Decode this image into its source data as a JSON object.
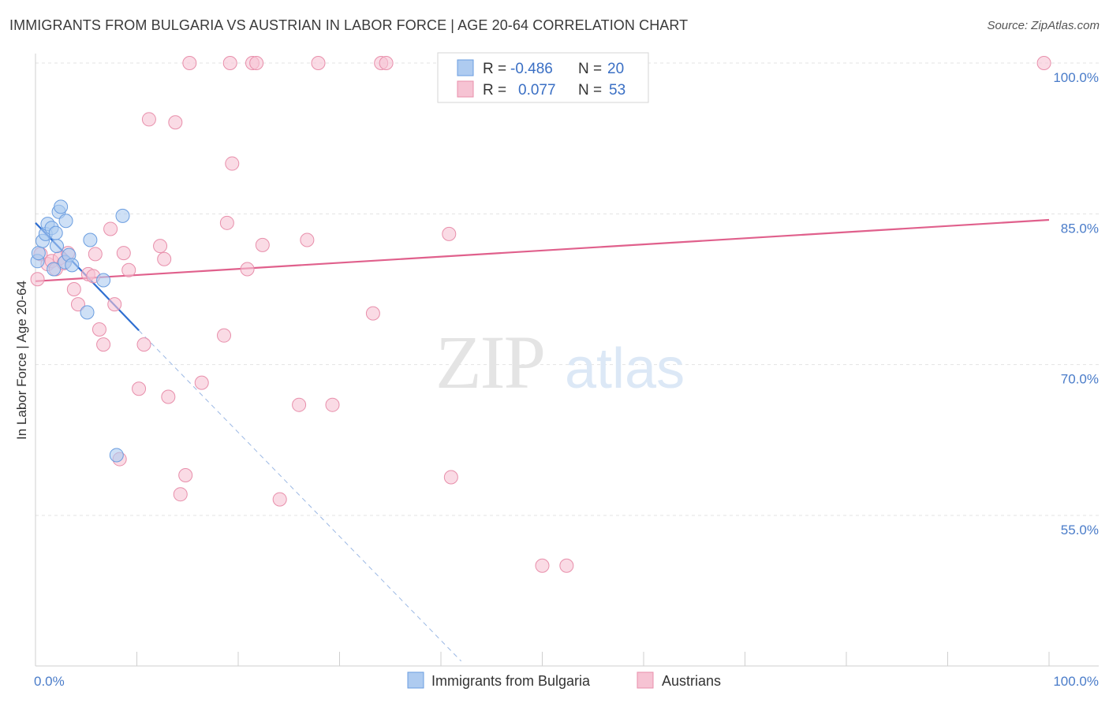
{
  "title": "IMMIGRANTS FROM BULGARIA VS AUSTRIAN IN LABOR FORCE | AGE 20-64 CORRELATION CHART",
  "source": "Source: ZipAtlas.com",
  "watermark": {
    "zip": "ZIP",
    "atlas": "atlas"
  },
  "colors": {
    "blue_fill": "#aecbf0",
    "blue_stroke": "#6a9de0",
    "blue_line": "#2f6fd1",
    "pink_fill": "#f6c3d3",
    "pink_stroke": "#e88fab",
    "pink_line": "#e0608c",
    "tick_text": "#4a7cc9",
    "grid": "#e3e3e3"
  },
  "legend": {
    "rows": [
      {
        "r_label": "R =",
        "r_value": "-0.486",
        "n_label": "N =",
        "n_value": "20"
      },
      {
        "r_label": "R =",
        "r_value": "0.077",
        "n_label": "N =",
        "n_value": "53"
      }
    ]
  },
  "chart_data": {
    "type": "scatter",
    "title": "IMMIGRANTS FROM BULGARIA VS AUSTRIAN IN LABOR FORCE | AGE 20-64 CORRELATION CHART",
    "xlabel": "",
    "ylabel": "In Labor Force | Age 20-64",
    "xlim": [
      0,
      100
    ],
    "ylim": [
      45,
      102
    ],
    "x_tick_labels": [
      "0.0%",
      "100.0%"
    ],
    "y_ticks": [
      55,
      70,
      85,
      100
    ],
    "y_tick_labels": [
      "55.0%",
      "70.0%",
      "85.0%",
      "100.0%"
    ],
    "grid": true,
    "legend_position": "top-center",
    "series": [
      {
        "name": "Immigrants from Bulgaria",
        "color": "#aecbf0",
        "points": [
          [
            0.2,
            80.3
          ],
          [
            0.3,
            81.1
          ],
          [
            0.7,
            82.3
          ],
          [
            1.0,
            83.0
          ],
          [
            1.2,
            84.0
          ],
          [
            1.6,
            83.6
          ],
          [
            1.8,
            79.5
          ],
          [
            2.1,
            81.8
          ],
          [
            2.3,
            85.2
          ],
          [
            2.5,
            85.7
          ],
          [
            2.9,
            80.2
          ],
          [
            3.0,
            84.3
          ],
          [
            3.3,
            80.9
          ],
          [
            3.6,
            79.9
          ],
          [
            5.1,
            75.2
          ],
          [
            5.4,
            82.4
          ],
          [
            6.7,
            78.4
          ],
          [
            8.0,
            61.0
          ],
          [
            8.6,
            84.8
          ],
          [
            2.0,
            83.1
          ]
        ],
        "trend": {
          "x0": 0,
          "y0": 84.1,
          "x1": 10.2,
          "y1": 73.4,
          "dashed_to_x": 42,
          "dashed_to_y": 40.5
        }
      },
      {
        "name": "Austrians",
        "color": "#f6c3d3",
        "points": [
          [
            0.2,
            78.5
          ],
          [
            0.5,
            81.0
          ],
          [
            1.2,
            80.0
          ],
          [
            1.6,
            80.3
          ],
          [
            2.0,
            79.5
          ],
          [
            2.4,
            80.6
          ],
          [
            2.8,
            80.1
          ],
          [
            3.2,
            81.1
          ],
          [
            3.8,
            77.5
          ],
          [
            4.2,
            76.0
          ],
          [
            5.2,
            79.0
          ],
          [
            5.7,
            78.8
          ],
          [
            5.9,
            81.0
          ],
          [
            6.3,
            73.5
          ],
          [
            6.7,
            72.0
          ],
          [
            7.4,
            83.5
          ],
          [
            7.8,
            76.0
          ],
          [
            8.3,
            60.6
          ],
          [
            8.7,
            81.1
          ],
          [
            9.2,
            79.4
          ],
          [
            10.2,
            67.6
          ],
          [
            10.7,
            72.0
          ],
          [
            11.2,
            94.4
          ],
          [
            12.3,
            81.8
          ],
          [
            12.7,
            80.5
          ],
          [
            13.1,
            66.8
          ],
          [
            13.8,
            94.1
          ],
          [
            14.3,
            57.1
          ],
          [
            14.8,
            59.0
          ],
          [
            15.2,
            100.0
          ],
          [
            16.4,
            68.2
          ],
          [
            18.6,
            72.9
          ],
          [
            18.9,
            84.1
          ],
          [
            19.2,
            100.0
          ],
          [
            19.4,
            90.0
          ],
          [
            20.9,
            79.5
          ],
          [
            21.4,
            100.0
          ],
          [
            21.8,
            100.0
          ],
          [
            22.4,
            81.9
          ],
          [
            24.1,
            56.6
          ],
          [
            26.0,
            66.0
          ],
          [
            26.8,
            82.4
          ],
          [
            27.9,
            100.0
          ],
          [
            29.3,
            66.0
          ],
          [
            34.1,
            100.0
          ],
          [
            34.6,
            100.0
          ],
          [
            33.3,
            75.1
          ],
          [
            40.8,
            83.0
          ],
          [
            41.0,
            58.8
          ],
          [
            47.6,
            100.0
          ],
          [
            50.0,
            50.0
          ],
          [
            52.4,
            50.0
          ],
          [
            99.5,
            100.0
          ]
        ],
        "trend": {
          "x0": 0,
          "y0": 78.3,
          "x1": 100,
          "y1": 84.4
        }
      }
    ]
  }
}
